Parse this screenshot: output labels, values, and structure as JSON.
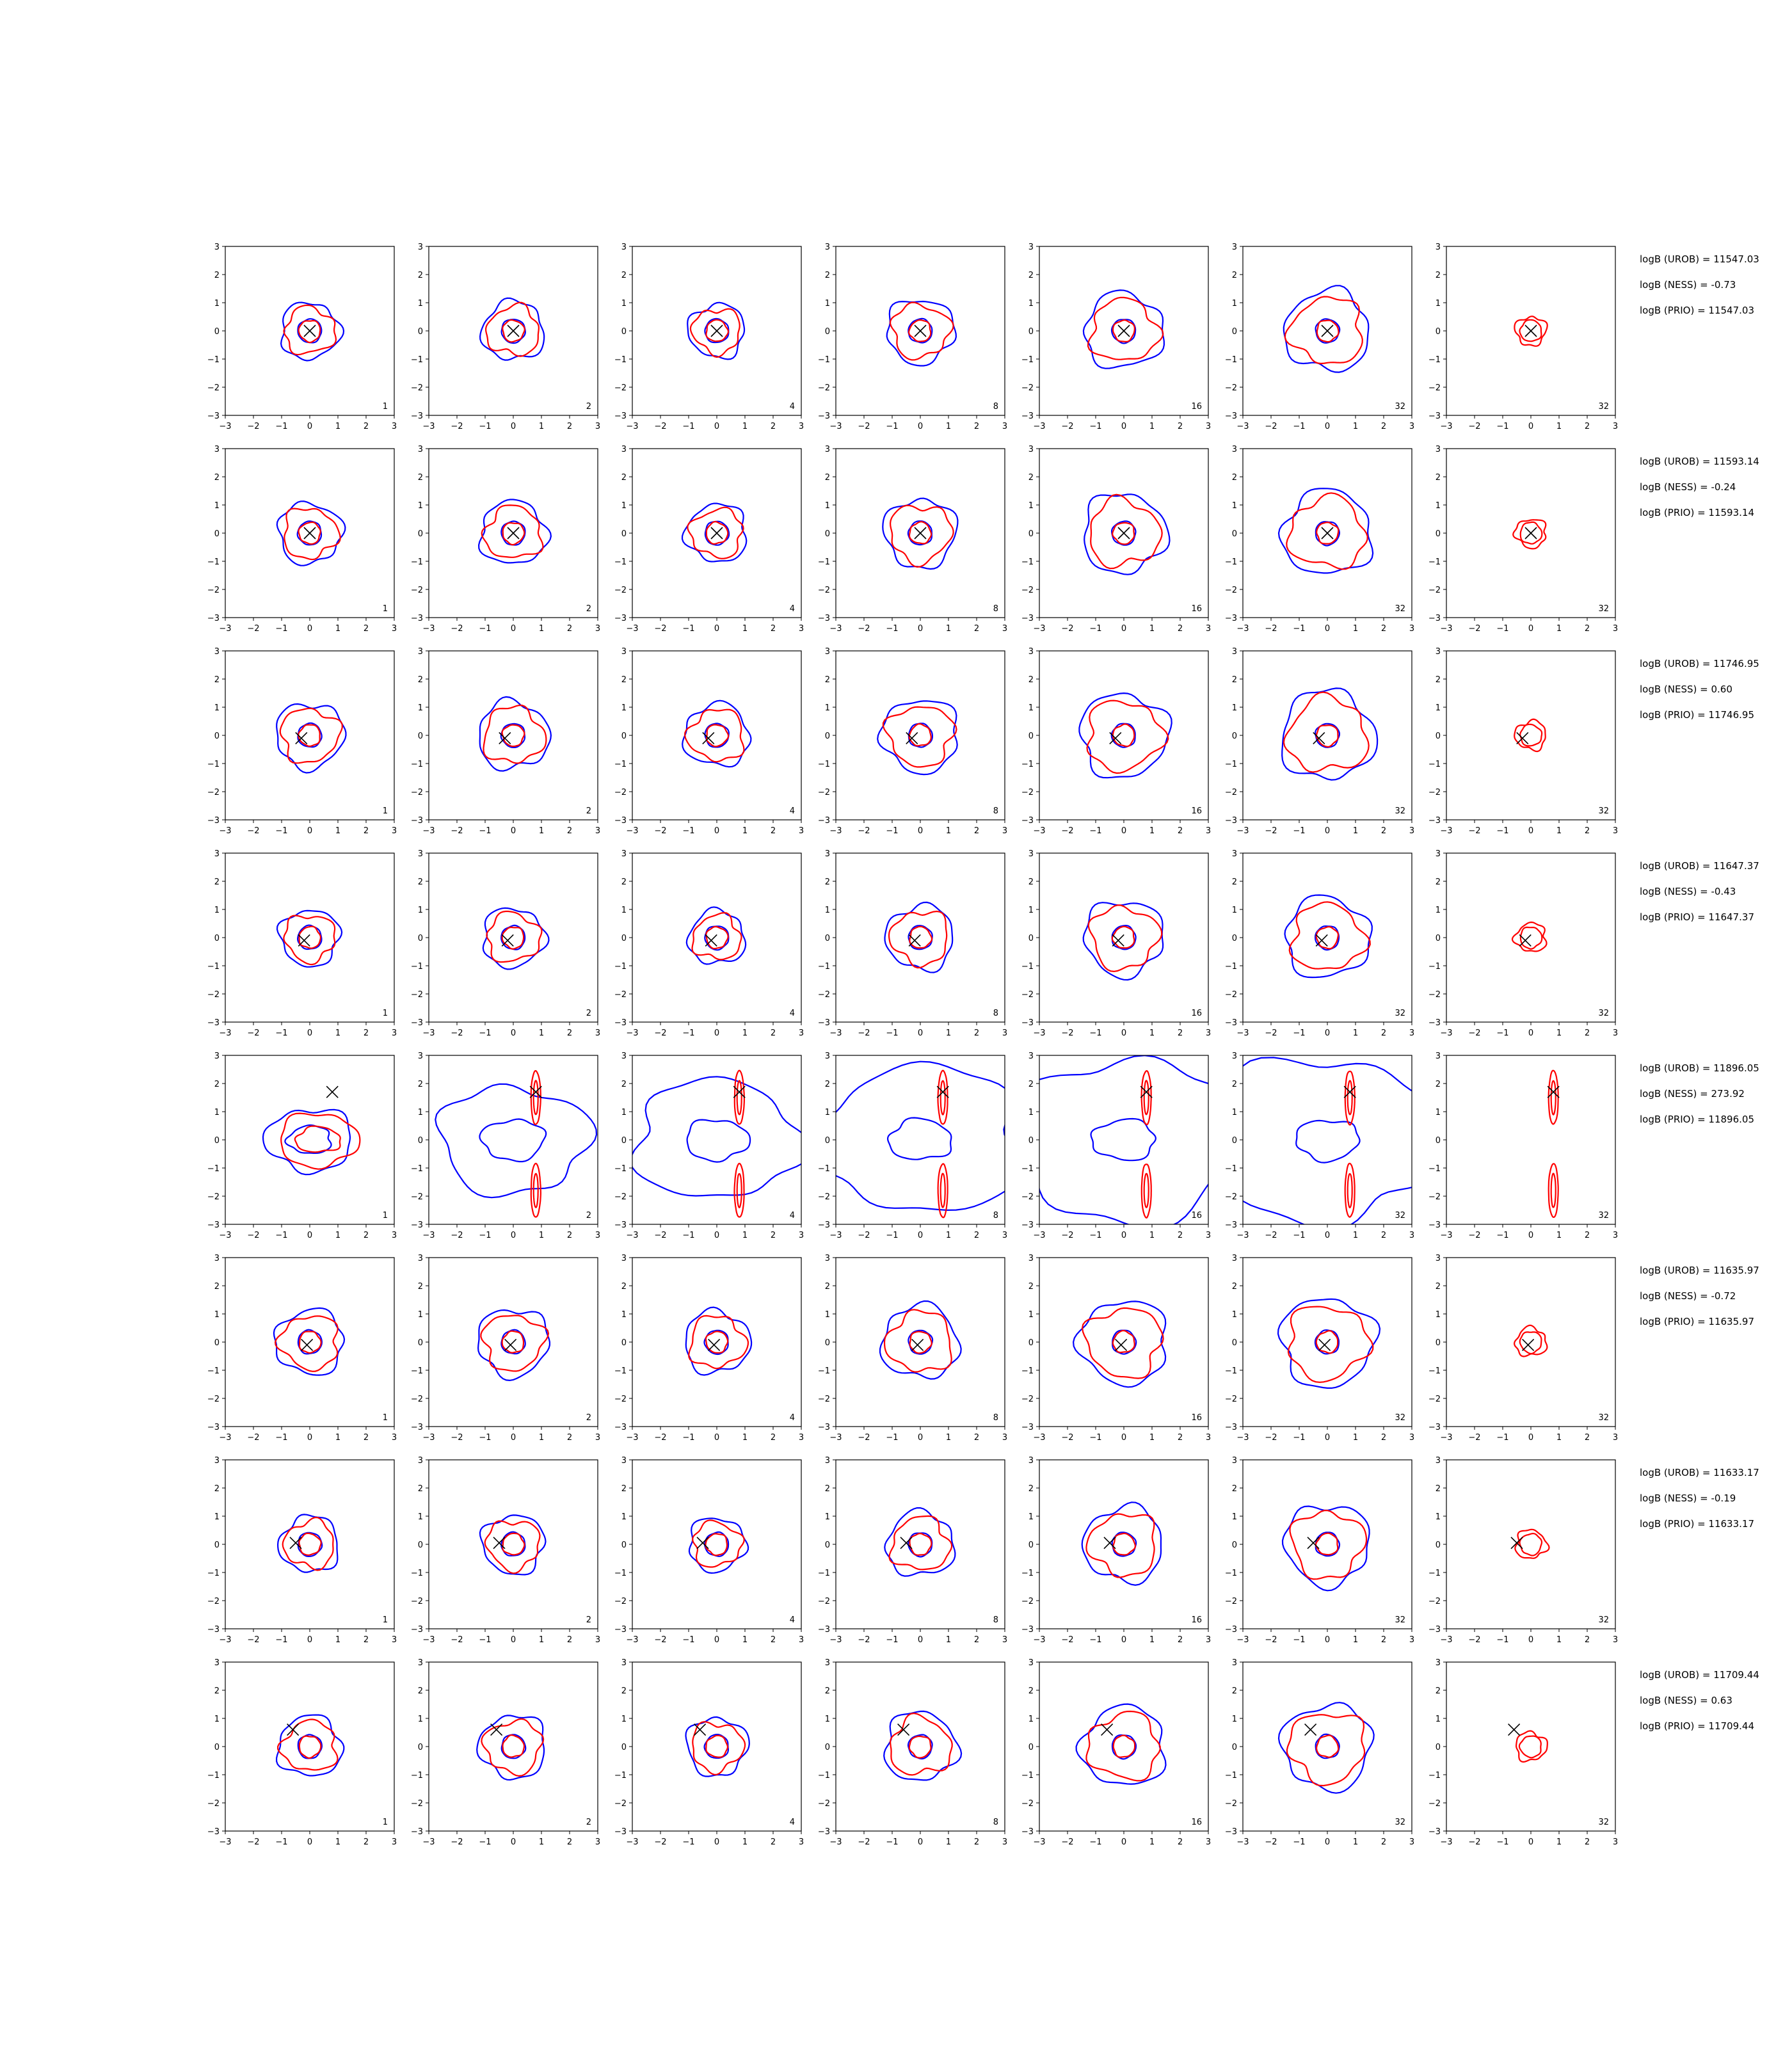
{
  "chart_data": {
    "type": "contour-grid",
    "xlim": [
      -3,
      3
    ],
    "ylim": [
      -3,
      3
    ],
    "ticks": [
      -3,
      -2,
      -1,
      0,
      1,
      2,
      3
    ],
    "tick_labels": [
      "−3",
      "−2",
      "−1",
      "0",
      "1",
      "2",
      "3"
    ],
    "column_labels": [
      "1",
      "2",
      "4",
      "8",
      "16",
      "32",
      "32"
    ],
    "colors": {
      "blue": "#0000ff",
      "red": "#ff0000",
      "marker": "#000000"
    },
    "rows": [
      {
        "marker": [
          0.0,
          0.0
        ],
        "spread": "compact",
        "annotations": [
          "logB (UROB) = 11547.03",
          "logB (NESS) = -0.73",
          "logB (PRIO) = 11547.03"
        ]
      },
      {
        "marker": [
          0.0,
          0.0
        ],
        "spread": "compact",
        "annotations": [
          "logB (UROB) = 11593.14",
          "logB (NESS) = -0.24",
          "logB (PRIO) = 11593.14"
        ]
      },
      {
        "marker": [
          -0.3,
          -0.1
        ],
        "spread": "compact",
        "annotations": [
          "logB (UROB) = 11746.95",
          "logB (NESS) = 0.60",
          "logB (PRIO) = 11746.95"
        ]
      },
      {
        "marker": [
          -0.2,
          -0.1
        ],
        "spread": "compact",
        "annotations": [
          "logB (UROB) = 11647.37",
          "logB (NESS) = -0.43",
          "logB (PRIO) = 11647.37"
        ]
      },
      {
        "marker": [
          0.8,
          1.7
        ],
        "spread": "wide",
        "annotations": [
          "logB (UROB) = 11896.05",
          "logB (NESS) = 273.92",
          "logB (PRIO) = 11896.05"
        ]
      },
      {
        "marker": [
          -0.1,
          -0.1
        ],
        "spread": "compact",
        "annotations": [
          "logB (UROB) = 11635.97",
          "logB (NESS) = -0.72",
          "logB (PRIO) = 11635.97"
        ]
      },
      {
        "marker": [
          -0.5,
          0.05
        ],
        "spread": "compact",
        "annotations": [
          "logB (UROB) = 11633.17",
          "logB (NESS) = -0.19",
          "logB (PRIO) = 11633.17"
        ]
      },
      {
        "marker": [
          -0.6,
          0.6
        ],
        "spread": "compact",
        "annotations": [
          "logB (UROB) = 11709.44",
          "logB (NESS) = 0.63",
          "logB (PRIO) = 11709.44"
        ]
      }
    ]
  }
}
